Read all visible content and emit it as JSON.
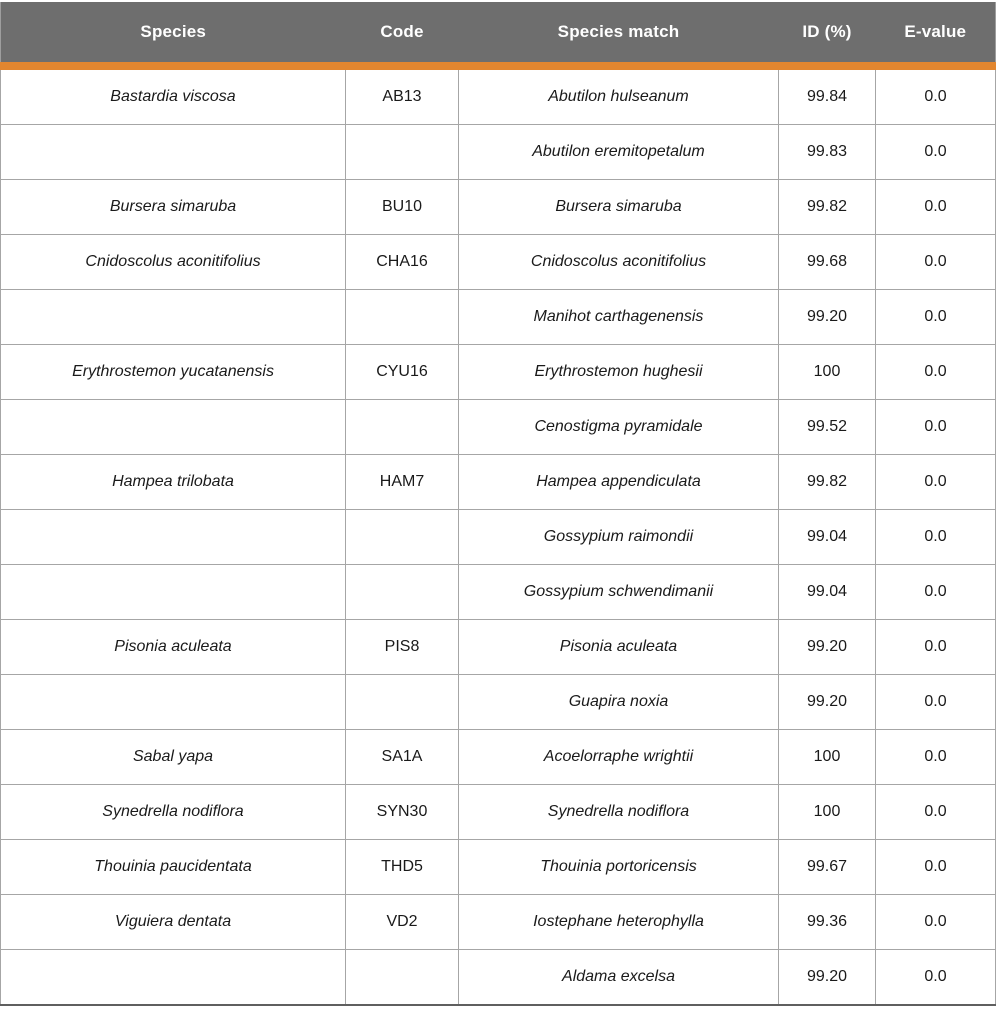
{
  "table": {
    "headers": [
      "Species",
      "Code",
      "Species match",
      "ID (%)",
      "E-value"
    ],
    "rows": [
      [
        "Bastardia viscosa",
        "AB13",
        "Abutilon hulseanum",
        "99.84",
        "0.0"
      ],
      [
        "",
        "",
        "Abutilon eremitopetalum",
        "99.83",
        "0.0"
      ],
      [
        "Bursera simaruba",
        "BU10",
        "Bursera simaruba",
        "99.82",
        "0.0"
      ],
      [
        "Cnidoscolus aconitifolius",
        "CHA16",
        "Cnidoscolus aconitifolius",
        "99.68",
        "0.0"
      ],
      [
        "",
        "",
        "Manihot carthagenensis",
        "99.20",
        "0.0"
      ],
      [
        "Erythrostemon yucatanensis",
        "CYU16",
        "Erythrostemon hughesii",
        "100",
        "0.0"
      ],
      [
        "",
        "",
        "Cenostigma pyramidale",
        "99.52",
        "0.0"
      ],
      [
        "Hampea trilobata",
        "HAM7",
        "Hampea appendiculata",
        "99.82",
        "0.0"
      ],
      [
        "",
        "",
        "Gossypium raimondii",
        "99.04",
        "0.0"
      ],
      [
        "",
        "",
        "Gossypium schwendimanii",
        "99.04",
        "0.0"
      ],
      [
        "Pisonia aculeata",
        "PIS8",
        "Pisonia aculeata",
        "99.20",
        "0.0"
      ],
      [
        "",
        "",
        "Guapira noxia",
        "99.20",
        "0.0"
      ],
      [
        "Sabal yapa",
        "SA1A",
        "Acoelorraphe wrightii",
        "100",
        "0.0"
      ],
      [
        "Synedrella nodiflora",
        "SYN30",
        "Synedrella nodiflora",
        "100",
        "0.0"
      ],
      [
        "Thouinia paucidentata",
        "THD5",
        "Thouinia portoricensis",
        "99.67",
        "0.0"
      ],
      [
        "Viguiera dentata",
        "VD2",
        "Iostephane heterophylla",
        "99.36",
        "0.0"
      ],
      [
        "",
        "",
        "Aldama excelsa",
        "99.20",
        "0.0"
      ]
    ]
  },
  "colors": {
    "header_bg": "#6E6E6E",
    "header_text": "#FFFFFF",
    "accent_orange": "#E2862F",
    "grid_line": "#A6A6A6",
    "outer_border": "#9E9E9E",
    "bottom_border": "#5F5F5F",
    "body_text": "#1A1A1A"
  },
  "chart_data": {
    "type": "table",
    "columns": [
      "Species",
      "Code",
      "Species match",
      "ID (%)",
      "E-value"
    ],
    "rows": [
      [
        "Bastardia viscosa",
        "AB13",
        "Abutilon hulseanum",
        "99.84",
        "0.0"
      ],
      [
        "",
        "",
        "Abutilon eremitopetalum",
        "99.83",
        "0.0"
      ],
      [
        "Bursera simaruba",
        "BU10",
        "Bursera simaruba",
        "99.82",
        "0.0"
      ],
      [
        "Cnidoscolus aconitifolius",
        "CHA16",
        "Cnidoscolus aconitifolius",
        "99.68",
        "0.0"
      ],
      [
        "",
        "",
        "Manihot carthagenensis",
        "99.20",
        "0.0"
      ],
      [
        "Erythrostemon yucatanensis",
        "CYU16",
        "Erythrostemon hughesii",
        "100",
        "0.0"
      ],
      [
        "",
        "",
        "Cenostigma pyramidale",
        "99.52",
        "0.0"
      ],
      [
        "Hampea trilobata",
        "HAM7",
        "Hampea appendiculata",
        "99.82",
        "0.0"
      ],
      [
        "",
        "",
        "Gossypium raimondii",
        "99.04",
        "0.0"
      ],
      [
        "",
        "",
        "Gossypium schwendimanii",
        "99.04",
        "0.0"
      ],
      [
        "Pisonia aculeata",
        "PIS8",
        "Pisonia aculeata",
        "99.20",
        "0.0"
      ],
      [
        "",
        "",
        "Guapira noxia",
        "99.20",
        "0.0"
      ],
      [
        "Sabal yapa",
        "SA1A",
        "Acoelorraphe wrightii",
        "100",
        "0.0"
      ],
      [
        "Synedrella nodiflora",
        "SYN30",
        "Synedrella nodiflora",
        "100",
        "0.0"
      ],
      [
        "Thouinia paucidentata",
        "THD5",
        "Thouinia portoricensis",
        "99.67",
        "0.0"
      ],
      [
        "Viguiera dentata",
        "VD2",
        "Iostephane heterophylla",
        "99.36",
        "0.0"
      ],
      [
        "",
        "",
        "Aldama excelsa",
        "99.20",
        "0.0"
      ]
    ]
  }
}
